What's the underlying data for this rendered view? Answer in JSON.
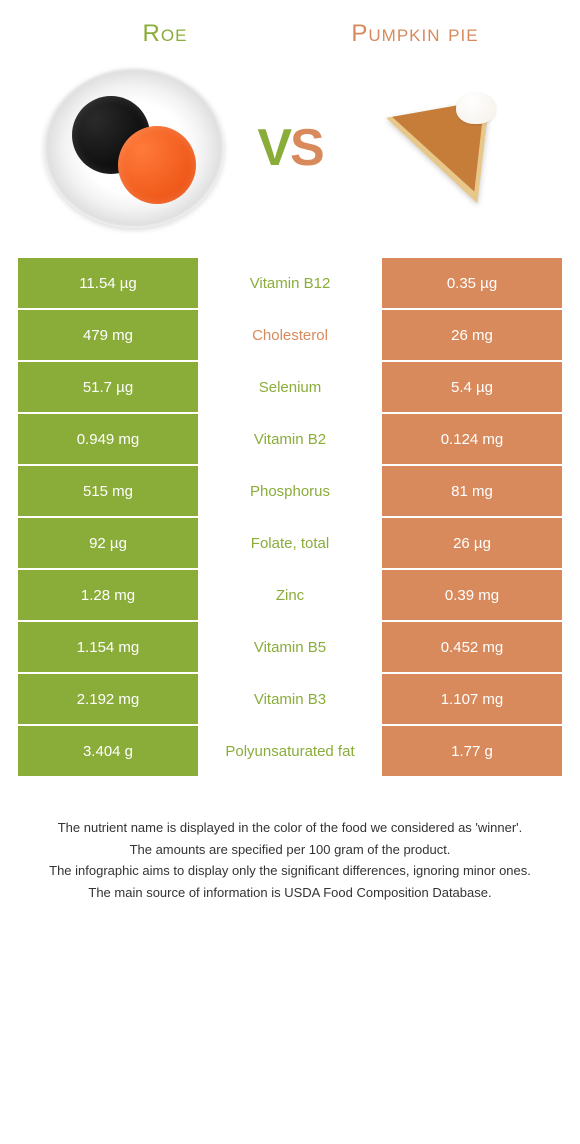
{
  "colors": {
    "roe": "#8aad3a",
    "pie": "#d88a5c",
    "roe_bg": "#8aad3a",
    "pie_bg": "#d88a5c",
    "white": "#ffffff"
  },
  "header": {
    "left_title": "Roe",
    "right_title": "Pumpkin pie",
    "vs_v": "V",
    "vs_s": "S"
  },
  "rows": [
    {
      "left": "11.54 µg",
      "name": "Vitamin B12",
      "right": "0.35 µg",
      "winner": "roe"
    },
    {
      "left": "479 mg",
      "name": "Cholesterol",
      "right": "26 mg",
      "winner": "pie"
    },
    {
      "left": "51.7 µg",
      "name": "Selenium",
      "right": "5.4 µg",
      "winner": "roe"
    },
    {
      "left": "0.949 mg",
      "name": "Vitamin B2",
      "right": "0.124 mg",
      "winner": "roe"
    },
    {
      "left": "515 mg",
      "name": "Phosphorus",
      "right": "81 mg",
      "winner": "roe"
    },
    {
      "left": "92 µg",
      "name": "Folate, total",
      "right": "26 µg",
      "winner": "roe"
    },
    {
      "left": "1.28 mg",
      "name": "Zinc",
      "right": "0.39 mg",
      "winner": "roe"
    },
    {
      "left": "1.154 mg",
      "name": "Vitamin B5",
      "right": "0.452 mg",
      "winner": "roe"
    },
    {
      "left": "2.192 mg",
      "name": "Vitamin B3",
      "right": "1.107 mg",
      "winner": "roe"
    },
    {
      "left": "3.404 g",
      "name": "Polyunsaturated fat",
      "right": "1.77 g",
      "winner": "roe"
    }
  ],
  "footer": {
    "l1": "The nutrient name is displayed in the color of the food we considered as 'winner'.",
    "l2": "The amounts are specified per 100 gram of the product.",
    "l3": "The infographic aims to display only the significant differences, ignoring minor ones.",
    "l4": "The main source of information is USDA Food Composition Database."
  }
}
